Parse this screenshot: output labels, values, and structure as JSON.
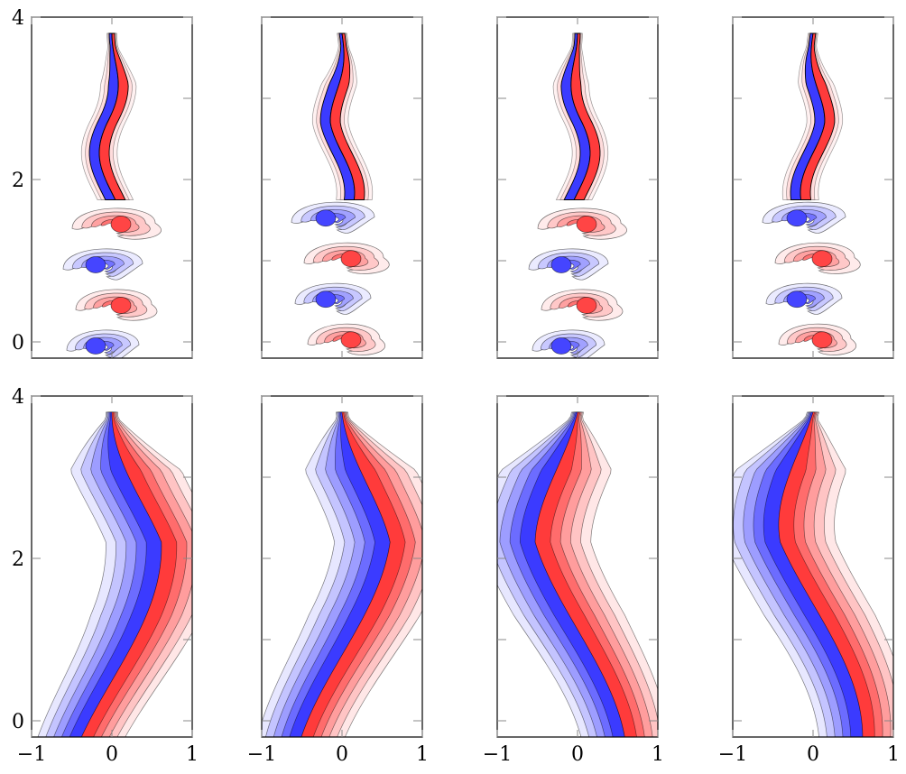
{
  "chart_data": {
    "type": "contour",
    "layout": "2 rows x 4 columns of vorticity contour panels",
    "xlim": [
      -1,
      1
    ],
    "ylim": [
      -0.2,
      4
    ],
    "xticks": [
      -1,
      0,
      1
    ],
    "xtick_labels": [
      "−1",
      "0",
      "1"
    ],
    "yticks": [
      0,
      2,
      4
    ],
    "ytick_labels": [
      "0",
      "2",
      "4"
    ],
    "colors": {
      "positive": "#ff3b3b",
      "negative": "#3b3bff",
      "contour_line": "#000000"
    },
    "panels": [
      {
        "row": 0,
        "col": 0,
        "wake": "vortex-street",
        "phase": 0.0,
        "first_sign": 1
      },
      {
        "row": 0,
        "col": 1,
        "wake": "vortex-street",
        "phase": 0.25,
        "first_sign": -1
      },
      {
        "row": 0,
        "col": 2,
        "wake": "vortex-street",
        "phase": 0.5,
        "first_sign": 1
      },
      {
        "row": 0,
        "col": 3,
        "wake": "vortex-street",
        "phase": 0.75,
        "first_sign": -1
      },
      {
        "row": 1,
        "col": 0,
        "wake": "meander",
        "phase": 0.0,
        "bend": -1
      },
      {
        "row": 1,
        "col": 1,
        "wake": "meander",
        "phase": 0.25,
        "bend": -1
      },
      {
        "row": 1,
        "col": 2,
        "wake": "meander",
        "phase": 0.5,
        "bend": 1
      },
      {
        "row": 1,
        "col": 3,
        "wake": "meander",
        "phase": 0.75,
        "bend": 1
      }
    ]
  }
}
